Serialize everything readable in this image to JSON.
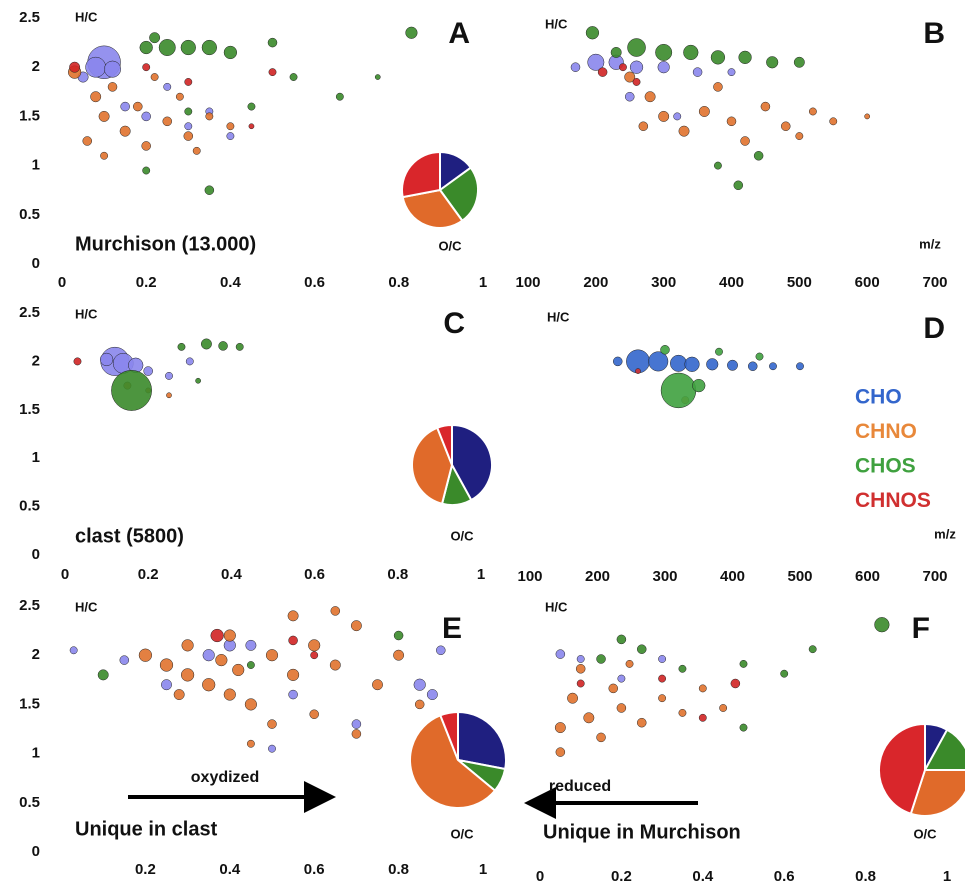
{
  "chart_data": [
    {
      "type": "scatter",
      "title": "A",
      "x_label": "O/C",
      "y_label": "H/C",
      "annotation": "Murchison (13.000)",
      "xlim": [
        0,
        1
      ],
      "ylim": [
        0,
        2.5
      ],
      "xticks": [
        0,
        0.2,
        0.4,
        0.6,
        0.8,
        1
      ],
      "yticks": [
        0,
        0.5,
        1,
        1.5,
        2,
        2.5
      ],
      "series": [
        {
          "color": "#8a86ec",
          "x": [
            0.1,
            0.08,
            0.12,
            0.05,
            0.15,
            0.2,
            0.3,
            0.25,
            0.4,
            0.35
          ],
          "y": [
            2.05,
            2.0,
            1.98,
            1.9,
            1.6,
            1.5,
            1.4,
            1.8,
            1.3,
            1.55
          ],
          "sizes": [
            40,
            15,
            10,
            4,
            3,
            3,
            2,
            2,
            2,
            2
          ]
        },
        {
          "color": "#e0722e",
          "x": [
            0.03,
            0.08,
            0.1,
            0.15,
            0.2,
            0.12,
            0.18,
            0.25,
            0.3,
            0.28,
            0.22,
            0.35,
            0.06,
            0.1,
            0.4,
            0.32
          ],
          "y": [
            1.95,
            1.7,
            1.5,
            1.35,
            1.2,
            1.8,
            1.6,
            1.45,
            1.3,
            1.7,
            1.9,
            1.5,
            1.25,
            1.1,
            1.4,
            1.15
          ],
          "sizes": [
            6,
            4,
            4,
            4,
            3,
            3,
            3,
            3,
            3,
            2,
            2,
            2,
            3,
            2,
            2,
            2
          ]
        },
        {
          "color": "#3a8a2a",
          "x": [
            0.25,
            0.3,
            0.35,
            0.2,
            0.4,
            0.22,
            0.5,
            0.83,
            0.35,
            0.45,
            0.55,
            0.66,
            0.3,
            0.2,
            0.75
          ],
          "y": [
            2.2,
            2.2,
            2.2,
            2.2,
            2.15,
            2.3,
            2.25,
            2.35,
            0.75,
            1.6,
            1.9,
            1.7,
            1.55,
            0.95,
            1.9
          ],
          "sizes": [
            10,
            8,
            8,
            6,
            6,
            4,
            3,
            5,
            3,
            2,
            2,
            2,
            2,
            2,
            1
          ]
        },
        {
          "color": "#d02424",
          "x": [
            0.03,
            0.2,
            0.3,
            0.5,
            0.45
          ],
          "y": [
            2.0,
            2.0,
            1.85,
            1.95,
            1.4
          ],
          "sizes": [
            4,
            2,
            2,
            2,
            1
          ]
        }
      ],
      "pie": {
        "values": [
          15,
          25,
          32,
          28
        ],
        "colors": [
          "#1f1f80",
          "#3a8a2a",
          "#e06a2a",
          "#d9262b"
        ]
      }
    },
    {
      "type": "scatter",
      "title": "B",
      "x_label": "m/z",
      "y_label": "H/C",
      "xlim": [
        100,
        700
      ],
      "ylim": [
        0,
        2.5
      ],
      "xticks": [
        100,
        200,
        300,
        400,
        500,
        600,
        700
      ],
      "series": [
        {
          "color": "#8a86ec",
          "x": [
            200,
            230,
            260,
            300,
            170,
            350,
            400,
            250,
            320
          ],
          "y": [
            2.05,
            2.05,
            2.0,
            2.0,
            2.0,
            1.95,
            1.95,
            1.7,
            1.5
          ],
          "sizes": [
            10,
            8,
            6,
            5,
            3,
            3,
            2,
            3,
            2
          ]
        },
        {
          "color": "#e0722e",
          "x": [
            250,
            280,
            300,
            330,
            360,
            400,
            420,
            450,
            480,
            500,
            520,
            380,
            270,
            550,
            600
          ],
          "y": [
            1.9,
            1.7,
            1.5,
            1.35,
            1.55,
            1.45,
            1.25,
            1.6,
            1.4,
            1.3,
            1.55,
            1.8,
            1.4,
            1.45,
            1.5
          ],
          "sizes": [
            4,
            4,
            4,
            4,
            4,
            3,
            3,
            3,
            3,
            2,
            2,
            3,
            3,
            2,
            1
          ]
        },
        {
          "color": "#3a8a2a",
          "x": [
            260,
            300,
            340,
            380,
            420,
            460,
            500,
            195,
            230,
            410,
            440,
            380
          ],
          "y": [
            2.2,
            2.15,
            2.15,
            2.1,
            2.1,
            2.05,
            2.05,
            2.35,
            2.15,
            0.8,
            1.1,
            1.0
          ],
          "sizes": [
            12,
            10,
            8,
            7,
            6,
            5,
            4,
            6,
            4,
            3,
            3,
            2
          ]
        },
        {
          "color": "#d02424",
          "x": [
            210,
            260,
            240
          ],
          "y": [
            1.95,
            1.85,
            2.0
          ],
          "sizes": [
            3,
            2,
            2
          ]
        }
      ]
    },
    {
      "type": "scatter",
      "title": "C",
      "x_label": "O/C",
      "y_label": "H/C",
      "annotation": "clast (5800)",
      "xlim": [
        0,
        1
      ],
      "ylim": [
        0,
        2.5
      ],
      "xticks": [
        0,
        0.2,
        0.4,
        0.6,
        0.8,
        1
      ],
      "yticks": [
        0,
        0.5,
        1,
        1.5,
        2,
        2.5
      ],
      "series": [
        {
          "color": "#8a86ec",
          "x": [
            0.12,
            0.14,
            0.17,
            0.1,
            0.2,
            0.25,
            0.3
          ],
          "y": [
            2.0,
            1.98,
            1.96,
            2.02,
            1.9,
            1.85,
            2.0
          ],
          "sizes": [
            30,
            15,
            8,
            6,
            3,
            2,
            2
          ]
        },
        {
          "color": "#e0722e",
          "x": [
            0.15,
            0.2,
            0.25
          ],
          "y": [
            1.75,
            1.7,
            1.65
          ],
          "sizes": [
            2,
            1,
            1
          ]
        },
        {
          "color": "#3a8a2a",
          "x": [
            0.16,
            0.34,
            0.38,
            0.28,
            0.42,
            0.32
          ],
          "y": [
            1.7,
            2.18,
            2.16,
            2.15,
            2.15,
            1.8
          ],
          "sizes": [
            60,
            4,
            3,
            2,
            2,
            1
          ]
        },
        {
          "color": "#d02424",
          "x": [
            0.03
          ],
          "y": [
            2.0
          ],
          "sizes": [
            2
          ]
        }
      ],
      "pie": {
        "values": [
          42,
          12,
          40,
          6
        ],
        "colors": [
          "#1f1f80",
          "#3a8a2a",
          "#e06a2a",
          "#d9262b"
        ]
      }
    },
    {
      "type": "scatter",
      "title": "D",
      "x_label": "m/z",
      "y_label": "H/C",
      "xlim": [
        100,
        700
      ],
      "ylim": [
        0,
        2.5
      ],
      "xticks": [
        100,
        200,
        300,
        400,
        500,
        600,
        700
      ],
      "series": [
        {
          "name": "CHO",
          "color": "#3366cc",
          "x": [
            260,
            290,
            320,
            340,
            370,
            400,
            430,
            460,
            500,
            230
          ],
          "y": [
            2.0,
            2.0,
            1.98,
            1.97,
            1.97,
            1.96,
            1.95,
            1.95,
            1.95,
            2.0
          ],
          "sizes": [
            20,
            14,
            10,
            8,
            5,
            4,
            3,
            2,
            2,
            3
          ]
        },
        {
          "name": "CHNO",
          "color": "#e8883a",
          "x": [
            330
          ],
          "y": [
            1.6
          ],
          "sizes": [
            2
          ]
        },
        {
          "name": "CHOS",
          "color": "#3fa13f",
          "x": [
            320,
            350,
            300,
            380,
            440
          ],
          "y": [
            1.7,
            1.75,
            2.12,
            2.1,
            2.05
          ],
          "sizes": [
            45,
            6,
            3,
            2,
            2
          ]
        },
        {
          "name": "CHNOS",
          "color": "#d03030",
          "x": [
            260
          ],
          "y": [
            1.9
          ],
          "sizes": [
            1
          ]
        }
      ]
    },
    {
      "type": "scatter",
      "title": "E",
      "x_label": "O/C",
      "y_label": "H/C",
      "annotation": "Unique in clast",
      "arrow_label": "oxydized",
      "xlim": [
        0,
        1
      ],
      "ylim": [
        0,
        2.5
      ],
      "xticks": [
        0.2,
        0.4,
        0.6,
        0.8,
        1
      ],
      "yticks": [
        0,
        0.5,
        1,
        1.5,
        2,
        2.5
      ],
      "series": [
        {
          "color": "#8a86ec",
          "x": [
            0.25,
            0.35,
            0.4,
            0.45,
            0.55,
            0.7,
            0.85,
            0.88,
            0.15,
            0.9,
            0.03,
            0.5
          ],
          "y": [
            1.7,
            2.0,
            2.1,
            2.1,
            1.6,
            1.3,
            1.7,
            1.6,
            1.95,
            2.05,
            2.05,
            1.05
          ],
          "sizes": [
            4,
            5,
            5,
            4,
            3,
            3,
            5,
            4,
            3,
            3,
            2,
            2
          ]
        },
        {
          "color": "#e0722e",
          "x": [
            0.2,
            0.25,
            0.3,
            0.35,
            0.4,
            0.45,
            0.3,
            0.4,
            0.5,
            0.55,
            0.6,
            0.65,
            0.7,
            0.75,
            0.8,
            0.85,
            0.5,
            0.6,
            0.7,
            0.55,
            0.65,
            0.45,
            0.38,
            0.28,
            0.42
          ],
          "y": [
            2.0,
            1.9,
            1.8,
            1.7,
            1.6,
            1.5,
            2.1,
            2.2,
            2.0,
            1.8,
            2.1,
            1.9,
            2.3,
            1.7,
            2.0,
            1.5,
            1.3,
            1.4,
            1.2,
            2.4,
            2.45,
            1.1,
            1.95,
            1.6,
            1.85
          ],
          "sizes": [
            6,
            6,
            6,
            6,
            5,
            5,
            5,
            5,
            5,
            5,
            5,
            4,
            4,
            4,
            4,
            3,
            3,
            3,
            3,
            4,
            3,
            2,
            5,
            4,
            5
          ]
        },
        {
          "color": "#3a8a2a",
          "x": [
            0.1,
            0.8,
            0.45
          ],
          "y": [
            1.8,
            2.2,
            1.9
          ],
          "sizes": [
            4,
            3,
            2
          ]
        },
        {
          "color": "#d02424",
          "x": [
            0.37,
            0.55,
            0.6
          ],
          "y": [
            2.2,
            2.15,
            2.0
          ],
          "sizes": [
            6,
            3,
            2
          ]
        }
      ],
      "pie": {
        "values": [
          28,
          8,
          58,
          6
        ],
        "colors": [
          "#1f1f80",
          "#3a8a2a",
          "#e06a2a",
          "#d9262b"
        ]
      }
    },
    {
      "type": "scatter",
      "title": "F",
      "x_label": "O/C",
      "y_label": "H/C",
      "annotation": "Unique in Murchison",
      "arrow_label": "reduced",
      "xlim": [
        0,
        1
      ],
      "ylim": [
        0,
        2.5
      ],
      "xticks": [
        0,
        0.2,
        0.4,
        0.6,
        0.8,
        1
      ],
      "series": [
        {
          "color": "#8a86ec",
          "x": [
            0.05,
            0.1,
            0.2,
            0.3
          ],
          "y": [
            2.05,
            2.0,
            1.8,
            2.0
          ],
          "sizes": [
            3,
            2,
            2,
            2
          ]
        },
        {
          "color": "#e0722e",
          "x": [
            0.05,
            0.08,
            0.1,
            0.12,
            0.15,
            0.18,
            0.2,
            0.25,
            0.3,
            0.35,
            0.4,
            0.05,
            0.22,
            0.45
          ],
          "y": [
            1.3,
            1.6,
            1.9,
            1.4,
            1.2,
            1.7,
            1.5,
            1.35,
            1.6,
            1.45,
            1.7,
            1.05,
            1.95,
            1.5
          ],
          "sizes": [
            4,
            4,
            3,
            4,
            3,
            3,
            3,
            3,
            2,
            2,
            2,
            3,
            2,
            2
          ]
        },
        {
          "color": "#3a8a2a",
          "x": [
            0.15,
            0.2,
            0.25,
            0.35,
            0.5,
            0.6,
            0.67,
            0.84,
            0.5
          ],
          "y": [
            2.0,
            2.2,
            2.1,
            1.9,
            1.95,
            1.85,
            2.1,
            2.35,
            1.3
          ],
          "sizes": [
            3,
            3,
            3,
            2,
            2,
            2,
            2,
            8,
            2
          ]
        },
        {
          "color": "#d02424",
          "x": [
            0.1,
            0.3,
            0.48,
            0.4
          ],
          "y": [
            1.75,
            1.8,
            1.75,
            1.4
          ],
          "sizes": [
            2,
            2,
            3,
            2
          ]
        }
      ],
      "pie": {
        "values": [
          8,
          17,
          30,
          45
        ],
        "colors": [
          "#1f1f80",
          "#3a8a2a",
          "#e06a2a",
          "#d9262b"
        ]
      }
    }
  ]
}
